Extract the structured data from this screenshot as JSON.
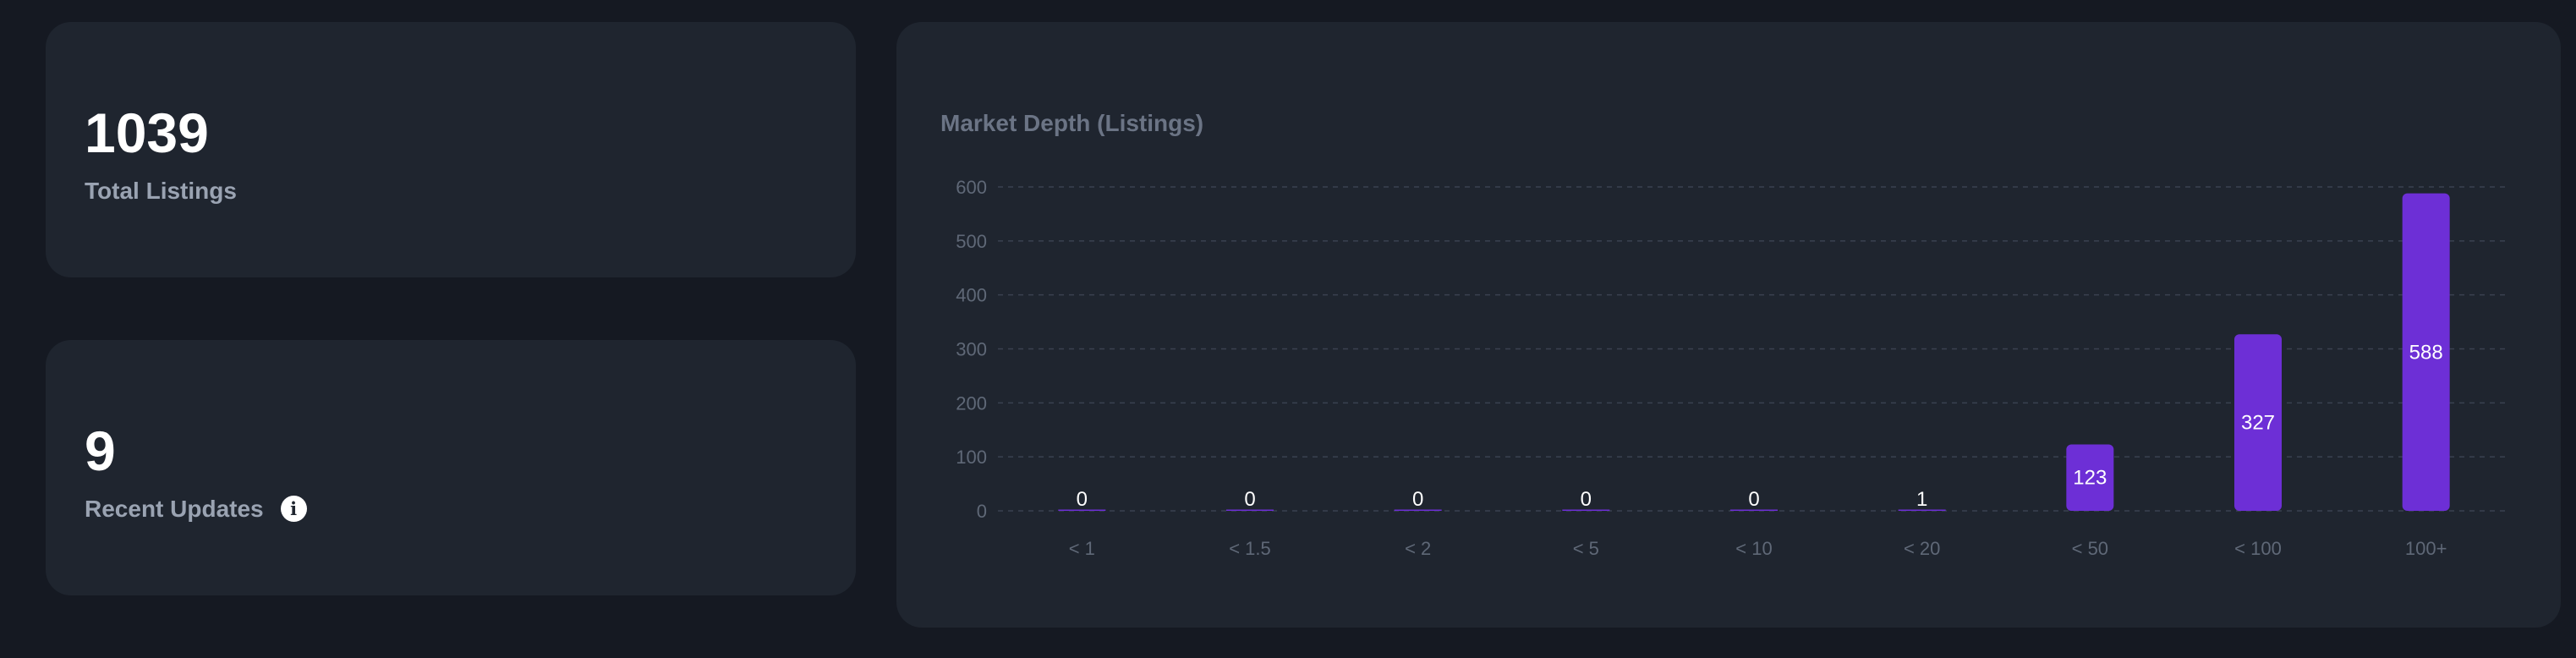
{
  "stats": {
    "total": {
      "value": "1039",
      "label": "Total Listings"
    },
    "recent": {
      "value": "9",
      "label": "Recent Updates",
      "info_icon": "i"
    }
  },
  "chart_data": {
    "type": "bar",
    "title": "Market Depth (Listings)",
    "categories": [
      "< 1",
      "< 1.5",
      "< 2",
      "< 5",
      "< 10",
      "< 20",
      "< 50",
      "< 100",
      "100+"
    ],
    "values": [
      0,
      0,
      0,
      0,
      0,
      1,
      123,
      327,
      588
    ],
    "ylim": [
      0,
      600
    ],
    "yticks": [
      0,
      100,
      200,
      300,
      400,
      500,
      600
    ],
    "grid": true,
    "bar_color": "#6d2fd6"
  }
}
